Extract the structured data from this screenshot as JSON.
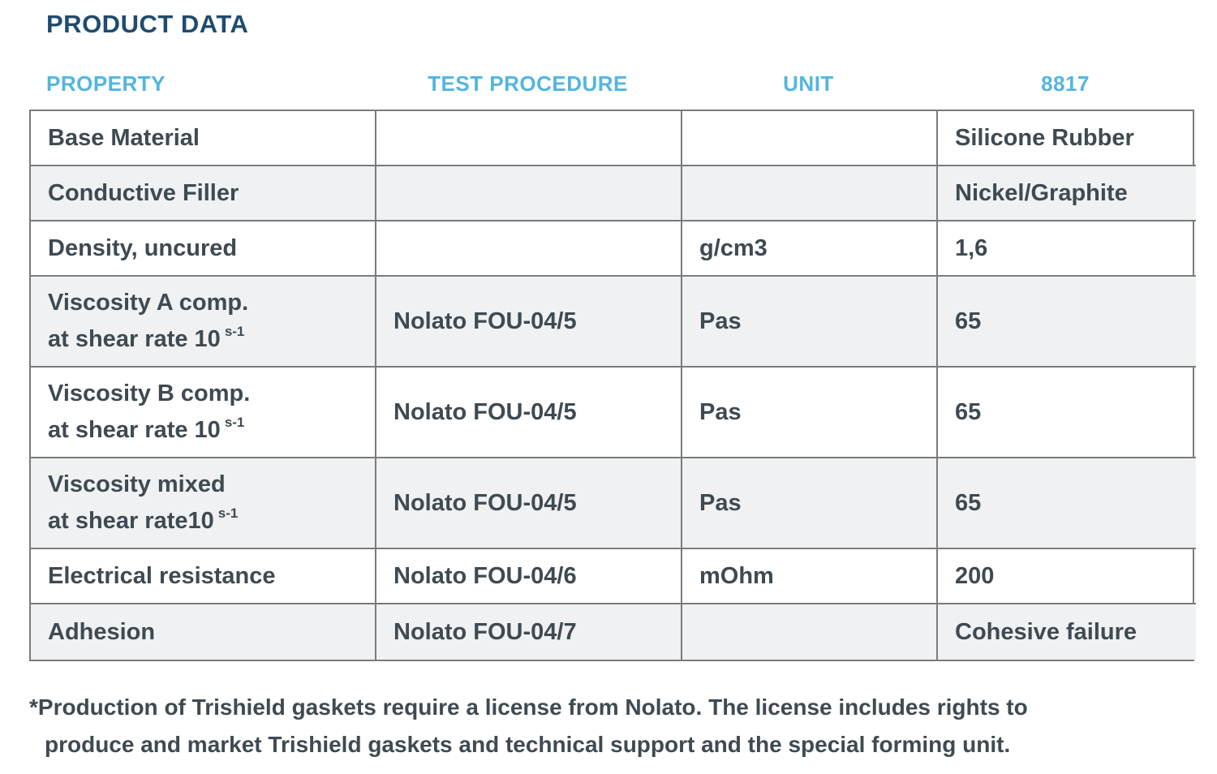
{
  "page": {
    "title": "PRODUCT DATA"
  },
  "table": {
    "columns": [
      {
        "label": "PROPERTY"
      },
      {
        "label": "TEST PROCEDURE"
      },
      {
        "label": "UNIT"
      },
      {
        "label": "8817"
      }
    ],
    "rows": [
      {
        "property": "Base Material",
        "test_procedure": "",
        "unit": "",
        "value": "Silicone Rubber"
      },
      {
        "property": "Conductive Filler",
        "test_procedure": "",
        "unit": "",
        "value": "Nickel/Graphite"
      },
      {
        "property": "Density, uncured",
        "test_procedure": "",
        "unit": "g/cm3",
        "value": "1,6"
      },
      {
        "property": "Viscosity A comp.",
        "property_line2": "at shear rate 10",
        "property_superscript": "s-1",
        "test_procedure": "Nolato FOU-04/5",
        "unit": "Pas",
        "value": "65"
      },
      {
        "property": "Viscosity B comp.",
        "property_line2": "at shear rate 10",
        "property_superscript": "s-1",
        "test_procedure": "Nolato FOU-04/5",
        "unit": "Pas",
        "value": "65"
      },
      {
        "property": "Viscosity mixed",
        "property_line2": "at shear rate10",
        "property_superscript": "s-1",
        "test_procedure": "Nolato FOU-04/5",
        "unit": "Pas",
        "value": "65"
      },
      {
        "property": "Electrical resistance",
        "test_procedure": "Nolato FOU-04/6",
        "unit": "mOhm",
        "value": "200"
      },
      {
        "property": "Adhesion",
        "test_procedure": "Nolato FOU-04/7",
        "unit": "",
        "value": "Cohesive failure"
      }
    ]
  },
  "footnote": {
    "line1": "*Production of Trishield gaskets require a license from Nolato. The license includes rights to",
    "line2": "produce and market Trishield gaskets and technical support and the special forming unit."
  },
  "colors": {
    "title": "#1f4b6e",
    "header": "#53b5df",
    "cell_text": "#3f4a51",
    "row_alt_bg": "#f0f1f2",
    "border": "#7b7b7b"
  }
}
